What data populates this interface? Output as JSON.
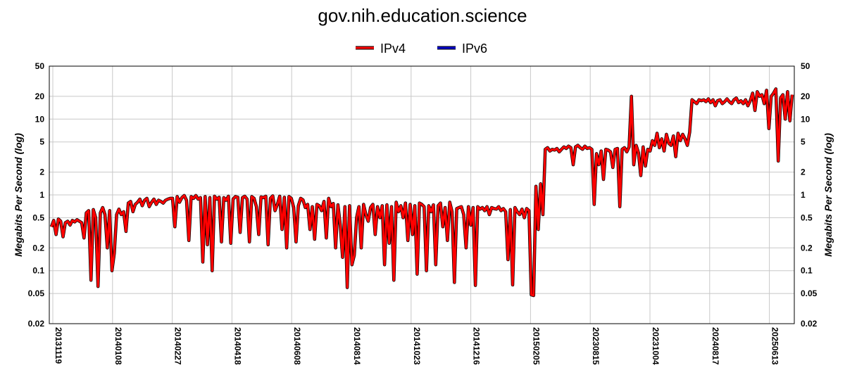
{
  "chart_data": {
    "type": "line",
    "title": "gov.nih.education.science",
    "ylabel_left": "Megabits Per Second (log)",
    "ylabel_right": "Megabits Per Second (log)",
    "y_scale": "log",
    "ylim": [
      0.02,
      50
    ],
    "y_ticks": [
      0.02,
      0.05,
      0.1,
      0.2,
      0.5,
      1,
      2,
      5,
      10,
      20,
      50
    ],
    "y_tick_labels": [
      "0.02",
      "0.05",
      "0.1",
      "0.2",
      "0.5",
      "1",
      "2",
      "5",
      "10",
      "20",
      "50"
    ],
    "x_tick_labels": [
      "20131119",
      "20140108",
      "20140227",
      "20140418",
      "20140608",
      "20140814",
      "20141023",
      "20141216",
      "20150205",
      "20230815",
      "20231004",
      "20240817",
      "20250613"
    ],
    "grid": true,
    "legend_position": "top-center",
    "series": [
      {
        "name": "IPv4",
        "color": "#ff0000",
        "values": [
          0.38,
          0.46,
          0.3,
          0.48,
          0.45,
          0.28,
          0.43,
          0.45,
          0.4,
          0.46,
          0.44,
          0.47,
          0.45,
          0.43,
          0.27,
          0.58,
          0.62,
          0.075,
          0.64,
          0.5,
          0.062,
          0.58,
          0.68,
          0.55,
          0.2,
          0.62,
          0.1,
          0.17,
          0.55,
          0.65,
          0.55,
          0.6,
          0.33,
          0.78,
          0.82,
          0.6,
          0.75,
          0.8,
          0.88,
          0.72,
          0.85,
          0.9,
          0.7,
          0.8,
          0.88,
          0.75,
          0.85,
          0.82,
          0.78,
          0.85,
          0.88,
          0.9,
          0.9,
          0.38,
          0.95,
          0.8,
          0.92,
          0.98,
          0.85,
          0.25,
          0.95,
          0.9,
          0.98,
          0.88,
          0.92,
          0.13,
          0.95,
          0.22,
          0.92,
          0.1,
          0.96,
          0.88,
          0.93,
          0.24,
          0.92,
          0.85,
          0.96,
          0.23,
          0.88,
          0.95,
          0.93,
          0.32,
          0.92,
          0.96,
          0.88,
          0.24,
          0.95,
          0.9,
          0.7,
          0.3,
          0.94,
          0.92,
          0.96,
          0.22,
          0.9,
          0.97,
          0.62,
          0.75,
          0.96,
          0.35,
          0.93,
          0.2,
          0.95,
          0.9,
          0.68,
          0.24,
          0.72,
          0.9,
          0.86,
          0.68,
          0.75,
          0.35,
          0.7,
          0.26,
          0.75,
          0.72,
          0.62,
          0.82,
          0.27,
          0.9,
          0.7,
          0.77,
          0.2,
          0.74,
          0.4,
          0.15,
          0.7,
          0.06,
          0.72,
          0.12,
          0.16,
          0.5,
          0.7,
          0.2,
          0.75,
          0.55,
          0.45,
          0.68,
          0.75,
          0.3,
          0.7,
          0.5,
          0.72,
          0.12,
          0.74,
          0.23,
          0.7,
          0.075,
          0.8,
          0.6,
          0.72,
          0.5,
          0.78,
          0.25,
          0.75,
          0.3,
          0.72,
          0.09,
          0.78,
          0.75,
          0.7,
          0.1,
          0.72,
          0.6,
          0.74,
          0.12,
          0.72,
          0.78,
          0.38,
          0.68,
          0.25,
          0.8,
          0.6,
          0.07,
          0.66,
          0.68,
          0.7,
          0.55,
          0.2,
          0.7,
          0.4,
          0.68,
          0.064,
          0.7,
          0.65,
          0.68,
          0.62,
          0.7,
          0.55,
          0.68,
          0.66,
          0.65,
          0.7,
          0.62,
          0.66,
          0.6,
          0.14,
          0.64,
          0.065,
          0.68,
          0.6,
          0.55,
          0.65,
          0.5,
          0.66,
          0.62,
          0.048,
          0.047,
          1.3,
          0.35,
          1.4,
          0.55,
          4.0,
          4.2,
          3.8,
          4.0,
          3.9,
          4.1,
          3.7,
          4.0,
          4.3,
          4.1,
          4.4,
          4.2,
          2.5,
          4.3,
          4.5,
          4.2,
          4.0,
          4.4,
          4.1,
          4.2,
          4.0,
          0.75,
          3.5,
          2.5,
          3.8,
          1.6,
          4.0,
          3.9,
          3.7,
          2.3,
          4.0,
          4.1,
          0.7,
          4.0,
          4.2,
          3.7,
          4.3,
          20,
          2.5,
          4.5,
          3.6,
          1.8,
          4.3,
          2.4,
          4.0,
          3.8,
          5.2,
          4.5,
          6.5,
          4.2,
          5.5,
          3.8,
          6.3,
          4.8,
          4.5,
          6.0,
          3.2,
          6.5,
          5.2,
          6.3,
          5.5,
          4.5,
          6.7,
          18,
          17,
          16,
          18,
          17.5,
          18,
          17,
          18.5,
          16.5,
          18,
          15,
          17.5,
          18,
          16,
          17,
          18.5,
          17,
          16,
          18,
          19,
          16.5,
          17.5,
          16,
          18,
          15,
          17.5,
          22,
          13,
          23,
          20,
          21,
          16,
          24,
          7.5,
          20,
          22,
          25,
          2.8,
          19,
          21,
          10,
          23,
          9.5,
          21
        ]
      },
      {
        "name": "IPv6",
        "color": "#0000cc",
        "values": []
      }
    ]
  }
}
